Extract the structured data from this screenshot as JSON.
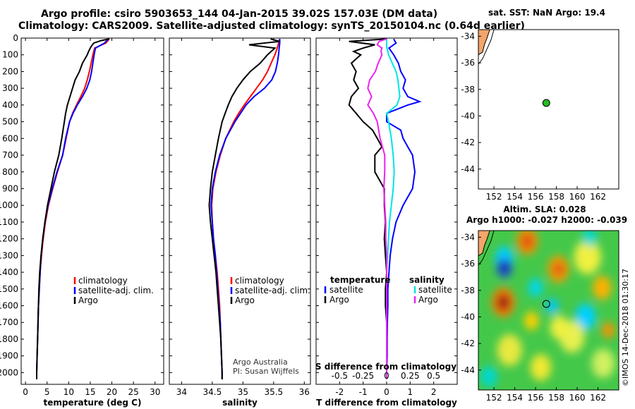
{
  "header": {
    "line1": "Argo profile: csiro 5903653_144 04-Jan-2015 39.02S 157.03E (DM data)",
    "line2": "Climatology: CARS2009. Satellite-adjusted climatology: synTS_20150104.nc (0.64d earlier)"
  },
  "colors": {
    "climatology": "#ff0000",
    "satellite": "#0000ff",
    "argo": "#000000",
    "s_satellite": "#00e5e5",
    "s_argo": "#ee22ee",
    "land": "#f4a56a",
    "float_marker": "#22bb22"
  },
  "sst_map": {
    "title": "sat. SST: NaN Argo: 19.4",
    "xticks": [
      152,
      154,
      156,
      158,
      160,
      162
    ],
    "yticks": [
      -34,
      -36,
      -38,
      -40,
      -42,
      -44
    ],
    "xlim": [
      150.5,
      164.0
    ],
    "ylim": [
      -45.5,
      -33.5
    ],
    "float_lon": 157.03,
    "float_lat": -39.02
  },
  "sla_map": {
    "title1": "Altim. SLA: 0.028",
    "title2": "Argo h1000: -0.027 h2000: -0.039",
    "xticks": [
      152,
      154,
      156,
      158,
      160,
      162
    ],
    "yticks": [
      -34,
      -36,
      -38,
      -40,
      -42,
      -44
    ],
    "xlim": [
      150.5,
      164.0
    ],
    "ylim": [
      -45.5,
      -33.5
    ],
    "float_lon": 157.03,
    "float_lat": -39.02,
    "colorbar_label": "©IMOS 14-Dec-2018 01:30:17"
  },
  "chart_data": [
    {
      "type": "line",
      "name": "temperature",
      "xlabel": "temperature (deg C)",
      "ylabel": "",
      "xlim": [
        -1,
        32
      ],
      "ylim": [
        2070,
        0
      ],
      "xticks": [
        0,
        5,
        10,
        15,
        20,
        25,
        30
      ],
      "yticks": [
        0,
        100,
        200,
        300,
        400,
        500,
        600,
        700,
        800,
        900,
        1000,
        1100,
        1200,
        1300,
        1400,
        1500,
        1600,
        1700,
        1800,
        1900,
        2000
      ],
      "legend": [
        "climatology",
        "satellite-adj. clim.",
        "Argo"
      ],
      "legend_position": "lower-right",
      "series": [
        {
          "name": "climatology",
          "color": "#ff0000",
          "depth": [
            5,
            30,
            60,
            100,
            150,
            200,
            250,
            300,
            350,
            400,
            450,
            500,
            600,
            700,
            800,
            900,
            1000,
            1100,
            1200,
            1300,
            1400,
            1500,
            1600,
            1700,
            1800,
            1900,
            2000,
            2040
          ],
          "values": [
            19.4,
            18.6,
            16.0,
            15.6,
            15.2,
            14.8,
            14.3,
            13.7,
            12.8,
            11.8,
            10.9,
            10.2,
            9.4,
            8.6,
            7.4,
            6.3,
            5.3,
            4.6,
            4.1,
            3.7,
            3.4,
            3.2,
            3.0,
            2.9,
            2.8,
            2.7,
            2.6,
            2.6
          ]
        },
        {
          "name": "satellite-adj. clim.",
          "color": "#0000ff",
          "depth": [
            5,
            30,
            60,
            100,
            150,
            200,
            250,
            300,
            350,
            400,
            450,
            500,
            600,
            700,
            800,
            900,
            1000,
            1100,
            1200,
            1300,
            1400,
            1500,
            1600,
            1700,
            1800,
            1900,
            2000,
            2040
          ],
          "values": [
            19.2,
            18.3,
            16.2,
            15.9,
            15.6,
            15.3,
            14.9,
            14.2,
            13.2,
            12.0,
            11.0,
            10.2,
            9.3,
            8.6,
            7.3,
            6.2,
            5.2,
            4.5,
            4.0,
            3.6,
            3.4,
            3.2,
            3.0,
            2.9,
            2.8,
            2.7,
            2.6,
            2.6
          ]
        },
        {
          "name": "Argo",
          "color": "#000000",
          "depth": [
            5,
            15,
            30,
            50,
            80,
            100,
            150,
            200,
            250,
            300,
            350,
            400,
            450,
            500,
            600,
            700,
            800,
            900,
            1000,
            1100,
            1200,
            1300,
            1400,
            1500,
            1600,
            1700,
            1800,
            1900,
            2000,
            2040
          ],
          "values": [
            19.4,
            17.5,
            15.8,
            15.2,
            14.6,
            14.3,
            13.2,
            12.5,
            11.5,
            10.9,
            10.3,
            9.7,
            9.3,
            9.0,
            8.4,
            7.7,
            6.7,
            5.9,
            5.1,
            4.5,
            4.0,
            3.6,
            3.3,
            3.1,
            3.0,
            2.9,
            2.8,
            2.7,
            2.6,
            2.6
          ]
        }
      ]
    },
    {
      "type": "line",
      "name": "salinity",
      "xlabel": "salinity",
      "ylabel": "",
      "xlim": [
        33.8,
        36.1
      ],
      "ylim": [
        2070,
        0
      ],
      "xticks": [
        34,
        34.5,
        35,
        35.5,
        36
      ],
      "legend": [
        "climatology",
        "satellite-adj. clim.",
        "Argo"
      ],
      "legend_position": "lower-right",
      "annotation": [
        "Argo Australia",
        "PI: Susan Wijffels"
      ],
      "series": [
        {
          "name": "climatology",
          "color": "#ff0000",
          "depth": [
            5,
            30,
            60,
            100,
            150,
            200,
            250,
            300,
            350,
            400,
            450,
            500,
            600,
            700,
            800,
            900,
            1000,
            1100,
            1200,
            1300,
            1400,
            1500,
            1600,
            1700,
            1800,
            1900,
            2000,
            2040
          ],
          "values": [
            35.6,
            35.58,
            35.56,
            35.52,
            35.46,
            35.4,
            35.32,
            35.22,
            35.12,
            35.02,
            34.93,
            34.85,
            34.72,
            34.63,
            34.56,
            34.51,
            34.49,
            34.5,
            34.52,
            34.55,
            34.58,
            34.6,
            34.62,
            34.63,
            34.64,
            34.65,
            34.66,
            34.66
          ]
        },
        {
          "name": "satellite-adj. clim.",
          "color": "#0000ff",
          "depth": [
            5,
            30,
            60,
            100,
            150,
            200,
            250,
            300,
            350,
            400,
            450,
            500,
            600,
            700,
            800,
            900,
            1000,
            1100,
            1200,
            1300,
            1400,
            1500,
            1600,
            1700,
            1800,
            1900,
            2000,
            2040
          ],
          "values": [
            35.6,
            35.6,
            35.59,
            35.58,
            35.56,
            35.53,
            35.47,
            35.35,
            35.18,
            35.05,
            34.96,
            34.87,
            34.72,
            34.62,
            34.55,
            34.5,
            34.48,
            34.5,
            34.52,
            34.55,
            34.57,
            34.59,
            34.61,
            34.63,
            34.64,
            34.65,
            34.66,
            34.66
          ]
        },
        {
          "name": "Argo",
          "color": "#000000",
          "depth": [
            5,
            20,
            40,
            60,
            80,
            100,
            150,
            200,
            250,
            300,
            350,
            400,
            450,
            500,
            600,
            700,
            800,
            900,
            1000,
            1100,
            1200,
            1300,
            1400,
            1500,
            1600,
            1700,
            1800,
            1900,
            2000,
            2040
          ],
          "values": [
            35.45,
            35.6,
            35.1,
            35.52,
            35.46,
            35.4,
            35.28,
            35.12,
            35.0,
            34.9,
            34.82,
            34.76,
            34.71,
            34.66,
            34.6,
            34.55,
            34.5,
            34.47,
            34.45,
            34.47,
            34.5,
            34.53,
            34.56,
            34.58,
            34.6,
            34.62,
            34.64,
            34.65,
            34.66,
            34.66
          ]
        }
      ]
    },
    {
      "type": "line",
      "name": "differences",
      "xlabel": "T difference from climatology",
      "xlabel_top": "S difference from climatology",
      "xlim": [
        -3.0,
        3.0
      ],
      "ylim": [
        2070,
        0
      ],
      "xticks": [
        -2,
        -1,
        0,
        1,
        2
      ],
      "s_xticks_labels": [
        "-0.5",
        "-0.25",
        "0",
        "0.25",
        "0.5"
      ],
      "legend_left_title": "temperature",
      "legend_right_title": "salinity",
      "legend_left": [
        "satellite",
        "Argo"
      ],
      "legend_right": [
        "satellite",
        "Argo"
      ],
      "series": [
        {
          "name": "T satellite",
          "color": "#0000ff",
          "depth": [
            5,
            30,
            60,
            100,
            150,
            200,
            250,
            300,
            350,
            380,
            400,
            450,
            500,
            550,
            600,
            650,
            700,
            800,
            900,
            1000,
            1100,
            1200,
            1300,
            1400,
            1500,
            1600,
            1700,
            1800,
            1900,
            2000,
            2040
          ],
          "values": [
            0.3,
            0.4,
            0.1,
            0.3,
            0.5,
            0.6,
            0.8,
            0.7,
            0.9,
            1.4,
            0.9,
            0.0,
            0.0,
            0.6,
            0.7,
            0.9,
            1.1,
            1.2,
            1.1,
            0.7,
            0.4,
            0.25,
            0.15,
            0.1,
            0.05,
            0.05,
            0.03,
            0.02,
            0.02,
            0.0,
            0.0
          ]
        },
        {
          "name": "T Argo",
          "color": "#000000",
          "depth": [
            5,
            20,
            40,
            60,
            80,
            100,
            150,
            200,
            250,
            300,
            350,
            400,
            450,
            500,
            550,
            600,
            650,
            700,
            800,
            900,
            1000,
            1100,
            1200,
            1300,
            1400,
            1500,
            1600,
            1700,
            1800,
            1900,
            2000,
            2040
          ],
          "values": [
            0.0,
            -1.6,
            -0.5,
            -1.0,
            -1.4,
            -1.1,
            -1.5,
            -1.3,
            -1.4,
            -1.2,
            -1.5,
            -1.6,
            -1.3,
            -1.0,
            -0.6,
            -0.4,
            -0.2,
            -0.5,
            -0.5,
            -0.1,
            -0.1,
            -0.05,
            -0.1,
            -0.05,
            0.0,
            -0.05,
            -0.05,
            0.0,
            0.0,
            0.0,
            0.0,
            0.0
          ]
        },
        {
          "name": "S satellite",
          "color": "#00e5e5",
          "depth": [
            5,
            50,
            100,
            150,
            200,
            250,
            300,
            350,
            400,
            450,
            500,
            600,
            700,
            800,
            900,
            1000,
            1100,
            1200,
            1300,
            1400,
            1500,
            1600,
            1700,
            1800,
            1900,
            2000,
            2040
          ],
          "values": [
            0.0,
            0.0,
            0.02,
            0.06,
            0.1,
            0.12,
            0.13,
            0.14,
            0.11,
            0.0,
            0.02,
            0.05,
            0.07,
            0.08,
            0.07,
            0.05,
            0.03,
            0.02,
            0.01,
            0.0,
            0.0,
            0.0,
            0.0,
            0.0,
            0.0,
            0.0,
            0.0
          ]
        },
        {
          "name": "S Argo",
          "color": "#ee22ee",
          "depth": [
            5,
            20,
            40,
            60,
            80,
            100,
            150,
            200,
            250,
            300,
            350,
            400,
            450,
            500,
            600,
            700,
            800,
            900,
            1000,
            1100,
            1200,
            1300,
            1400,
            1500,
            1600,
            1700,
            1800,
            1900,
            2000,
            2040
          ],
          "values": [
            0.0,
            -0.08,
            -0.1,
            -0.05,
            -0.06,
            -0.05,
            -0.09,
            -0.12,
            -0.18,
            -0.2,
            -0.16,
            -0.2,
            -0.14,
            -0.1,
            -0.07,
            -0.02,
            -0.02,
            -0.03,
            -0.02,
            -0.01,
            -0.01,
            0.0,
            0.0,
            0.0,
            0.0,
            0.0,
            0.0,
            0.0,
            0.0,
            0.0
          ]
        }
      ]
    }
  ]
}
